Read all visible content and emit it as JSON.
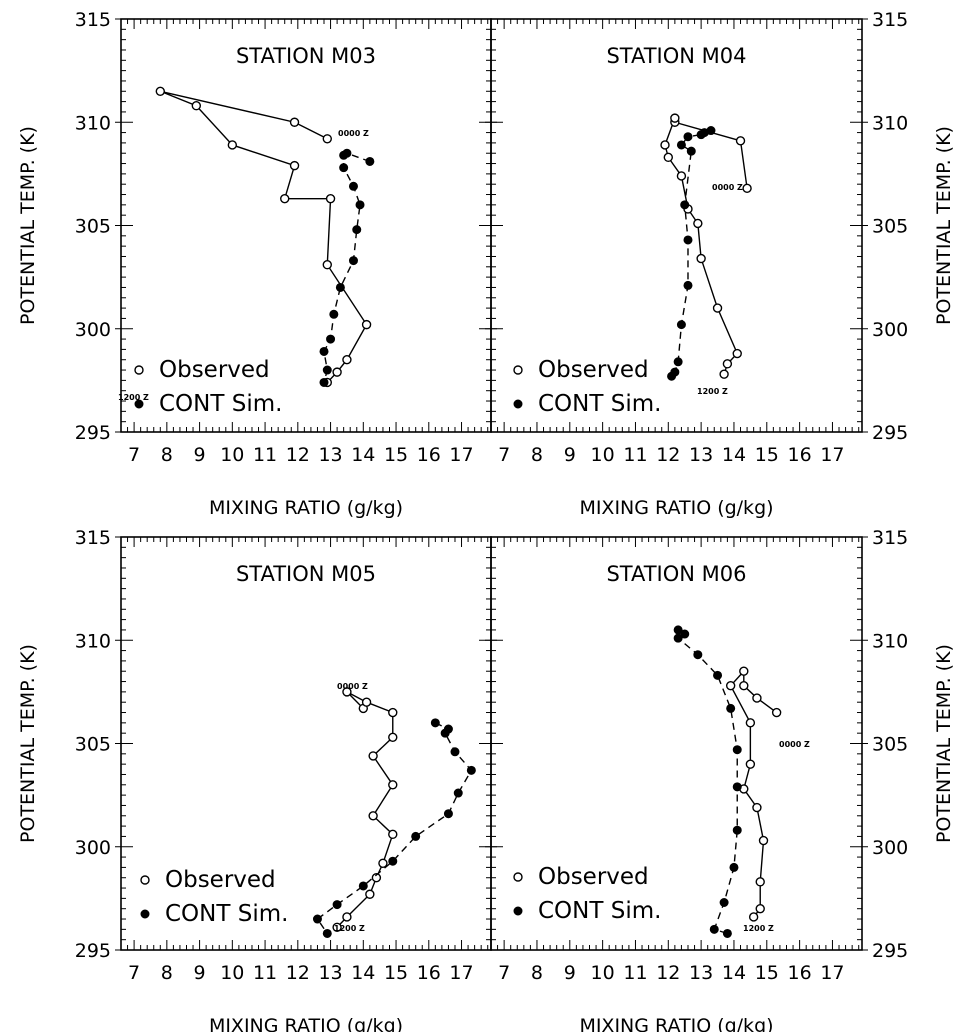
{
  "chart_data": [
    {
      "type": "line",
      "title": "STATION M03",
      "xlabel": "MIXING RATIO (g/kg)",
      "ylabel": "POTENTIAL TEMP. (K)",
      "ylabel_right": "",
      "xlim": [
        6.6,
        17.9
      ],
      "ylim": [
        295,
        315
      ],
      "x_ticks": [
        7,
        8,
        9,
        10,
        11,
        12,
        13,
        14,
        15,
        16,
        17
      ],
      "y_ticks": [
        295,
        300,
        305,
        310,
        315
      ],
      "y_tick_labels_right": [],
      "x_tick_labels": [
        "7",
        "8",
        "9",
        "10",
        "11",
        "12",
        "13",
        "14",
        "15",
        "16",
        "17"
      ],
      "legend": [
        "Observed",
        "CONT Sim."
      ],
      "annotations": [
        "0000 Z",
        "1200 Z"
      ],
      "series": [
        {
          "name": "Observed",
          "style": "solid",
          "marker": "open",
          "x": [
            12.9,
            11.9,
            7.8,
            8.9,
            10.0,
            11.9,
            11.6,
            13.0,
            12.9,
            14.1,
            13.5,
            13.2,
            12.9
          ],
          "y": [
            309.2,
            310.0,
            311.5,
            310.8,
            308.9,
            307.9,
            306.3,
            306.3,
            303.1,
            300.2,
            298.5,
            297.9,
            297.4
          ]
        },
        {
          "name": "CONT Sim.",
          "style": "dashed",
          "marker": "filled",
          "x": [
            14.2,
            13.5,
            13.4,
            13.4,
            13.7,
            13.9,
            13.8,
            13.7,
            13.3,
            13.1,
            13.0,
            12.8,
            12.9,
            12.8
          ],
          "y": [
            308.1,
            308.5,
            308.4,
            307.8,
            306.9,
            306.0,
            304.8,
            303.3,
            302.0,
            300.7,
            299.5,
            298.9,
            298.0,
            297.4
          ]
        }
      ]
    },
    {
      "type": "line",
      "title": "STATION M04",
      "xlabel": "MIXING RATIO (g/kg)",
      "ylabel": "",
      "ylabel_right": "POTENTIAL TEMP. (K)",
      "xlim": [
        6.6,
        17.9
      ],
      "ylim": [
        295,
        315
      ],
      "x_ticks": [
        7,
        8,
        9,
        10,
        11,
        12,
        13,
        14,
        15,
        16,
        17
      ],
      "y_ticks": [
        295,
        300,
        305,
        310,
        315
      ],
      "y_tick_labels_right": [
        "295",
        "300",
        "305",
        "310",
        "315"
      ],
      "x_tick_labels": [
        "7",
        "8",
        "9",
        "10",
        "11",
        "12",
        "13",
        "14",
        "15",
        "16",
        "17"
      ],
      "legend": [
        "Observed",
        "CONT Sim."
      ],
      "annotations": [
        "0000 Z",
        "1200 Z"
      ],
      "series": [
        {
          "name": "Observed",
          "style": "solid",
          "marker": "open",
          "x": [
            14.4,
            14.2,
            12.2,
            12.2,
            11.9,
            12.0,
            12.4,
            12.6,
            12.9,
            13.0,
            13.5,
            14.1,
            13.8,
            13.7
          ],
          "y": [
            306.8,
            309.1,
            310.0,
            310.2,
            308.9,
            308.3,
            307.4,
            305.8,
            305.1,
            303.4,
            301.0,
            298.8,
            298.3,
            297.8
          ]
        },
        {
          "name": "CONT Sim.",
          "style": "dashed",
          "marker": "filled",
          "x": [
            13.3,
            13.1,
            13.0,
            12.6,
            12.4,
            12.7,
            12.5,
            12.6,
            12.6,
            12.4,
            12.3,
            12.2,
            12.1
          ],
          "y": [
            309.6,
            309.5,
            309.4,
            309.3,
            308.9,
            308.6,
            306.0,
            304.3,
            302.1,
            300.2,
            298.4,
            297.9,
            297.7
          ]
        }
      ]
    },
    {
      "type": "line",
      "title": "STATION M05",
      "xlabel": "MIXING RATIO (g/kg)",
      "ylabel": "POTENTIAL TEMP. (K)",
      "ylabel_right": "",
      "xlim": [
        6.6,
        17.9
      ],
      "ylim": [
        295,
        315
      ],
      "x_ticks": [
        7,
        8,
        9,
        10,
        11,
        12,
        13,
        14,
        15,
        16,
        17
      ],
      "y_ticks": [
        295,
        300,
        305,
        310,
        315
      ],
      "y_tick_labels_right": [],
      "x_tick_labels": [
        "7",
        "8",
        "9",
        "10",
        "11",
        "12",
        "13",
        "14",
        "15",
        "16",
        "17"
      ],
      "legend": [
        "Observed",
        "CONT Sim."
      ],
      "annotations": [
        "0000 Z",
        "1200 Z"
      ],
      "series": [
        {
          "name": "Observed",
          "style": "solid",
          "marker": "open",
          "x": [
            14.0,
            13.5,
            14.1,
            14.9,
            14.9,
            14.3,
            14.9,
            14.3,
            14.9,
            14.6,
            14.4,
            14.2,
            13.5,
            13.2
          ],
          "y": [
            306.7,
            307.5,
            307.0,
            306.5,
            305.3,
            304.4,
            303.0,
            301.5,
            300.6,
            299.2,
            298.5,
            297.7,
            296.6,
            296.1
          ]
        },
        {
          "name": "CONT Sim.",
          "style": "dashed",
          "marker": "filled",
          "x": [
            16.2,
            16.6,
            16.5,
            16.8,
            17.3,
            16.9,
            16.6,
            15.6,
            14.9,
            14.0,
            13.2,
            12.6,
            12.9
          ],
          "y": [
            306.0,
            305.7,
            305.5,
            304.6,
            303.7,
            302.6,
            301.6,
            300.5,
            299.3,
            298.1,
            297.2,
            296.5,
            295.8
          ]
        }
      ]
    },
    {
      "type": "line",
      "title": "STATION M06",
      "xlabel": "MIXING RATIO (g/kg)",
      "ylabel": "",
      "ylabel_right": "POTENTIAL TEMP. (K)",
      "xlim": [
        6.6,
        17.9
      ],
      "ylim": [
        295,
        315
      ],
      "x_ticks": [
        7,
        8,
        9,
        10,
        11,
        12,
        13,
        14,
        15,
        16,
        17
      ],
      "y_ticks": [
        295,
        300,
        305,
        310,
        315
      ],
      "y_tick_labels_right": [
        "295",
        "300",
        "305",
        "310",
        "315"
      ],
      "x_tick_labels": [
        "7",
        "8",
        "9",
        "10",
        "11",
        "12",
        "13",
        "14",
        "15",
        "16",
        "17"
      ],
      "legend": [
        "Observed",
        "CONT Sim."
      ],
      "annotations": [
        "0000 Z",
        "1200 Z"
      ],
      "series": [
        {
          "name": "Observed",
          "style": "solid",
          "marker": "open",
          "x": [
            15.3,
            14.7,
            14.3,
            14.3,
            13.9,
            14.5,
            14.5,
            14.3,
            14.7,
            14.9,
            14.8,
            14.8,
            14.6
          ],
          "y": [
            306.5,
            307.2,
            307.8,
            308.5,
            307.8,
            306.0,
            304.0,
            302.8,
            301.9,
            300.3,
            298.3,
            297.0,
            296.6
          ]
        },
        {
          "name": "CONT Sim.",
          "style": "dashed",
          "marker": "filled",
          "x": [
            12.3,
            12.5,
            12.3,
            12.9,
            13.5,
            13.9,
            14.1,
            14.1,
            14.1,
            14.0,
            13.7,
            13.4,
            13.8
          ],
          "y": [
            310.5,
            310.3,
            310.1,
            309.3,
            308.3,
            306.7,
            304.7,
            302.9,
            300.8,
            299.0,
            297.3,
            296.0,
            295.8
          ]
        }
      ]
    }
  ]
}
